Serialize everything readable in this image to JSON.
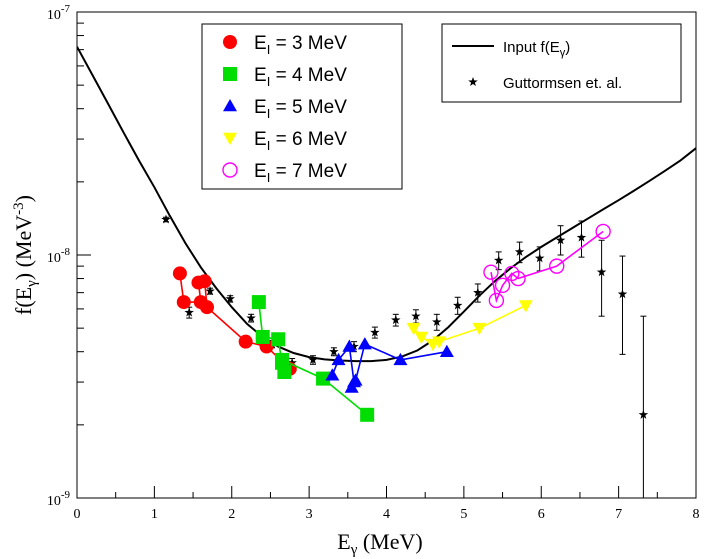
{
  "chart_data": {
    "type": "scatter",
    "title": "",
    "xlabel": "E_γ (MeV)",
    "ylabel": "f(E_γ) (MeV^-3)",
    "xlim": [
      0,
      8
    ],
    "ylim": [
      1e-09,
      1e-07
    ],
    "yscale": "log",
    "grid": false,
    "x_ticks": [
      "0",
      "1",
      "2",
      "3",
      "4",
      "5",
      "6",
      "7",
      "8"
    ],
    "y_tick_labels": [
      {
        "value": 1e-09,
        "base": "10",
        "exp": "-9"
      },
      {
        "value": 1e-08,
        "base": "10",
        "exp": "-8"
      },
      {
        "value": 1e-07,
        "base": "10",
        "exp": "-7"
      }
    ],
    "legend_left": [
      {
        "name": "E_I =  3 MeV",
        "prefix": "E",
        "sub": "I",
        "rest": " =  3 MeV",
        "color": "#ff0000",
        "marker": "circle"
      },
      {
        "name": "E_I =  4 MeV",
        "prefix": "E",
        "sub": "I",
        "rest": " =  4 MeV",
        "color": "#00dd00",
        "marker": "square"
      },
      {
        "name": "E_I =  5 MeV",
        "prefix": "E",
        "sub": "I",
        "rest": " =  5 MeV",
        "color": "#0000ff",
        "marker": "triangle-up"
      },
      {
        "name": "E_I =  6 MeV",
        "prefix": "E",
        "sub": "I",
        "rest": " =  6 MeV",
        "color": "#ffff00",
        "marker": "triangle-down"
      },
      {
        "name": "E_I =  7 MeV",
        "prefix": "E",
        "sub": "I",
        "rest": " =  7 MeV",
        "color": "#ff00ff",
        "marker": "open-circle"
      }
    ],
    "legend_right": [
      {
        "name": "Input f(E_γ)",
        "prefix": "Input f(E",
        "sub": "γ",
        "rest": ")",
        "marker": "line"
      },
      {
        "name": "Guttormsen et. al.",
        "prefix": "Guttormsen et. al.",
        "sub": "",
        "rest": "",
        "marker": "star"
      }
    ],
    "input_curve": {
      "name": "Input f(E_γ)",
      "color": "#000000",
      "x": [
        0.0,
        0.2,
        0.4,
        0.6,
        0.8,
        1.0,
        1.2,
        1.4,
        1.6,
        1.8,
        2.0,
        2.2,
        2.4,
        2.6,
        2.8,
        3.0,
        3.2,
        3.4,
        3.6,
        3.8,
        4.0,
        4.2,
        4.4,
        4.6,
        4.8,
        5.0,
        5.2,
        5.4,
        5.6,
        5.8,
        6.0,
        6.2,
        6.4,
        6.6,
        6.8,
        7.0,
        7.2,
        7.4,
        7.6,
        7.8,
        8.0
      ],
      "y": [
        7.2e-08,
        5.5e-08,
        4.2e-08,
        3.2e-08,
        2.45e-08,
        1.9e-08,
        1.45e-08,
        1.12e-08,
        8.9e-09,
        7.3e-09,
        6.1e-09,
        5.2e-09,
        4.6e-09,
        4.2e-09,
        3.95e-09,
        3.8e-09,
        3.72e-09,
        3.68e-09,
        3.66e-09,
        3.66e-09,
        3.7e-09,
        3.82e-09,
        4.05e-09,
        4.45e-09,
        5.05e-09,
        5.85e-09,
        6.8e-09,
        7.8e-09,
        8.8e-09,
        9.8e-09,
        1.08e-08,
        1.18e-08,
        1.29e-08,
        1.41e-08,
        1.54e-08,
        1.68e-08,
        1.84e-08,
        2.02e-08,
        2.22e-08,
        2.45e-08,
        2.75e-08
      ]
    },
    "series": [
      {
        "name": "E_I = 3 MeV",
        "color": "#ff0000",
        "marker": "circle",
        "x": [
          1.33,
          1.38,
          1.6,
          1.57,
          1.65,
          1.68,
          2.18,
          2.45,
          2.75
        ],
        "y": [
          8.4e-09,
          6.4e-09,
          6.4e-09,
          7.7e-09,
          7.8e-09,
          6.1e-09,
          4.4e-09,
          4.2e-09,
          3.4e-09
        ]
      },
      {
        "name": "E_I = 4 MeV",
        "color": "#00dd00",
        "marker": "square",
        "x": [
          2.35,
          2.4,
          2.6,
          2.65,
          2.68,
          2.65,
          3.18,
          3.75
        ],
        "y": [
          6.4e-09,
          4.6e-09,
          4.5e-09,
          3.6e-09,
          3.3e-09,
          3.7e-09,
          3.1e-09,
          2.2e-09
        ]
      },
      {
        "name": "E_I = 5 MeV",
        "color": "#0000ff",
        "marker": "triangle-up",
        "x": [
          3.3,
          3.38,
          3.52,
          3.58,
          3.55,
          3.6,
          3.72,
          4.18,
          4.78
        ],
        "y": [
          3.2e-09,
          3.7e-09,
          4.2e-09,
          3e-09,
          2.85e-09,
          3.05e-09,
          4.3e-09,
          3.7e-09,
          4e-09
        ]
      },
      {
        "name": "E_I = 6 MeV",
        "color": "#ffff00",
        "marker": "triangle-down",
        "x": [
          4.35,
          4.45,
          4.6,
          4.68,
          5.2,
          5.8
        ],
        "y": [
          5e-09,
          4.6e-09,
          4.3e-09,
          4.4e-09,
          5e-09,
          6.2e-09
        ]
      },
      {
        "name": "E_I = 7 MeV",
        "color": "#ff00ff",
        "marker": "open-circle",
        "x": [
          5.35,
          5.42,
          5.5,
          5.62,
          5.7,
          6.2,
          6.8
        ],
        "y": [
          8.5e-09,
          6.5e-09,
          7.5e-09,
          8.4e-09,
          8e-09,
          9e-09,
          1.25e-08
        ]
      }
    ],
    "guttormsen": {
      "name": "Guttormsen et. al.",
      "color": "#000000",
      "marker": "star",
      "points": [
        {
          "x": 1.15,
          "y": 1.4e-08,
          "lo": 1.37e-08,
          "hi": 1.43e-08
        },
        {
          "x": 1.45,
          "y": 5.8e-09,
          "lo": 5.5e-09,
          "hi": 6.1e-09
        },
        {
          "x": 1.72,
          "y": 7.1e-09,
          "lo": 6.9e-09,
          "hi": 7.3e-09
        },
        {
          "x": 1.98,
          "y": 6.6e-09,
          "lo": 6.4e-09,
          "hi": 6.8e-09
        },
        {
          "x": 2.25,
          "y": 5.5e-09,
          "lo": 5.3e-09,
          "hi": 5.7e-09
        },
        {
          "x": 2.52,
          "y": 4.3e-09,
          "lo": 4.15e-09,
          "hi": 4.45e-09
        },
        {
          "x": 2.78,
          "y": 3.6e-09,
          "lo": 3.45e-09,
          "hi": 3.75e-09
        },
        {
          "x": 3.05,
          "y": 3.7e-09,
          "lo": 3.55e-09,
          "hi": 3.85e-09
        },
        {
          "x": 3.32,
          "y": 4e-09,
          "lo": 3.85e-09,
          "hi": 4.15e-09
        },
        {
          "x": 3.58,
          "y": 4.2e-09,
          "lo": 4e-09,
          "hi": 4.4e-09
        },
        {
          "x": 3.85,
          "y": 4.8e-09,
          "lo": 4.55e-09,
          "hi": 5.05e-09
        },
        {
          "x": 4.12,
          "y": 5.4e-09,
          "lo": 5.1e-09,
          "hi": 5.7e-09
        },
        {
          "x": 4.38,
          "y": 5.6e-09,
          "lo": 5.25e-09,
          "hi": 5.95e-09
        },
        {
          "x": 4.65,
          "y": 5.3e-09,
          "lo": 4.9e-09,
          "hi": 5.7e-09
        },
        {
          "x": 4.92,
          "y": 6.2e-09,
          "lo": 5.7e-09,
          "hi": 6.7e-09
        },
        {
          "x": 5.18,
          "y": 7e-09,
          "lo": 6.4e-09,
          "hi": 7.6e-09
        },
        {
          "x": 5.45,
          "y": 9.5e-09,
          "lo": 8.7e-09,
          "hi": 1.03e-08
        },
        {
          "x": 5.72,
          "y": 1.03e-08,
          "lo": 9.3e-09,
          "hi": 1.13e-08
        },
        {
          "x": 5.98,
          "y": 9.7e-09,
          "lo": 8.6e-09,
          "hi": 1.08e-08
        },
        {
          "x": 6.25,
          "y": 1.15e-08,
          "lo": 1e-08,
          "hi": 1.32e-08
        },
        {
          "x": 6.52,
          "y": 1.18e-08,
          "lo": 9.8e-09,
          "hi": 1.38e-08
        },
        {
          "x": 6.78,
          "y": 8.5e-09,
          "lo": 5.6e-09,
          "hi": 1.15e-08
        },
        {
          "x": 7.05,
          "y": 6.9e-09,
          "lo": 3.9e-09,
          "hi": 9.9e-09
        },
        {
          "x": 7.32,
          "y": 2.2e-09,
          "lo": 1e-09,
          "hi": 5.6e-09
        }
      ]
    }
  }
}
